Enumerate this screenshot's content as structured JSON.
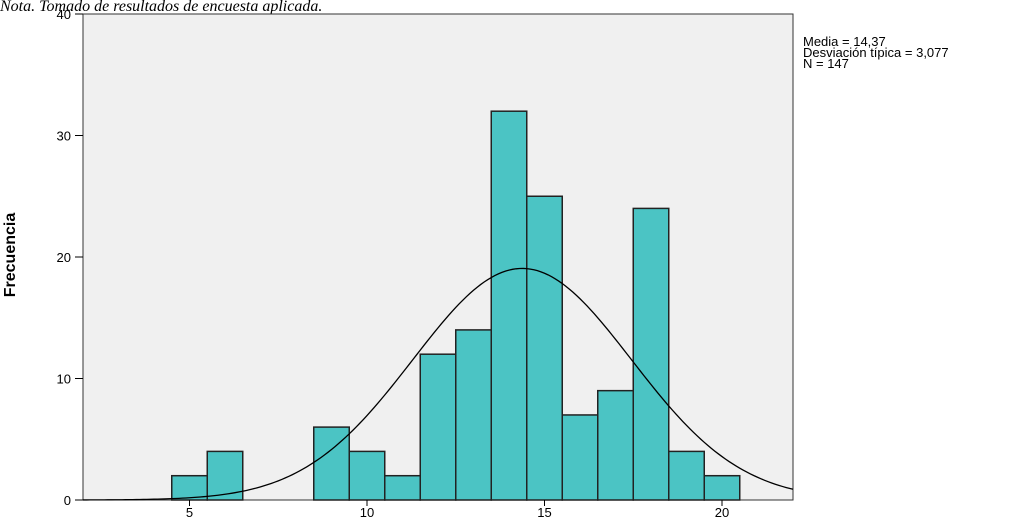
{
  "caption": "Nota. Tomado de resultados de encuesta aplicada.",
  "stats": {
    "mean": "Media = 14,37",
    "sd": "Desviación típica = 3,077",
    "n": "N = 147"
  },
  "colors": {
    "plot_bg": "#f0f0f0",
    "bar_fill": "#4bc4c4",
    "bar_stroke": "#222222",
    "curve": "#000000"
  },
  "chart_data": {
    "type": "bar",
    "title": "",
    "xlabel": "",
    "ylabel": "Frecuencia",
    "xlim": [
      2,
      22
    ],
    "ylim": [
      0,
      40
    ],
    "xticks": [
      5,
      10,
      15,
      20
    ],
    "yticks": [
      0,
      10,
      20,
      30,
      40
    ],
    "bin_width": 1,
    "bins": [
      {
        "x": 5,
        "count": 2
      },
      {
        "x": 6,
        "count": 4
      },
      {
        "x": 9,
        "count": 6
      },
      {
        "x": 10,
        "count": 4
      },
      {
        "x": 11,
        "count": 2
      },
      {
        "x": 12,
        "count": 12
      },
      {
        "x": 13,
        "count": 14
      },
      {
        "x": 14,
        "count": 32
      },
      {
        "x": 15,
        "count": 25
      },
      {
        "x": 16,
        "count": 7
      },
      {
        "x": 17,
        "count": 9
      },
      {
        "x": 18,
        "count": 24
      },
      {
        "x": 19,
        "count": 4
      },
      {
        "x": 20,
        "count": 2
      }
    ],
    "normal_curve": {
      "mean": 14.37,
      "sd": 3.077,
      "n": 147
    },
    "grid": false
  }
}
